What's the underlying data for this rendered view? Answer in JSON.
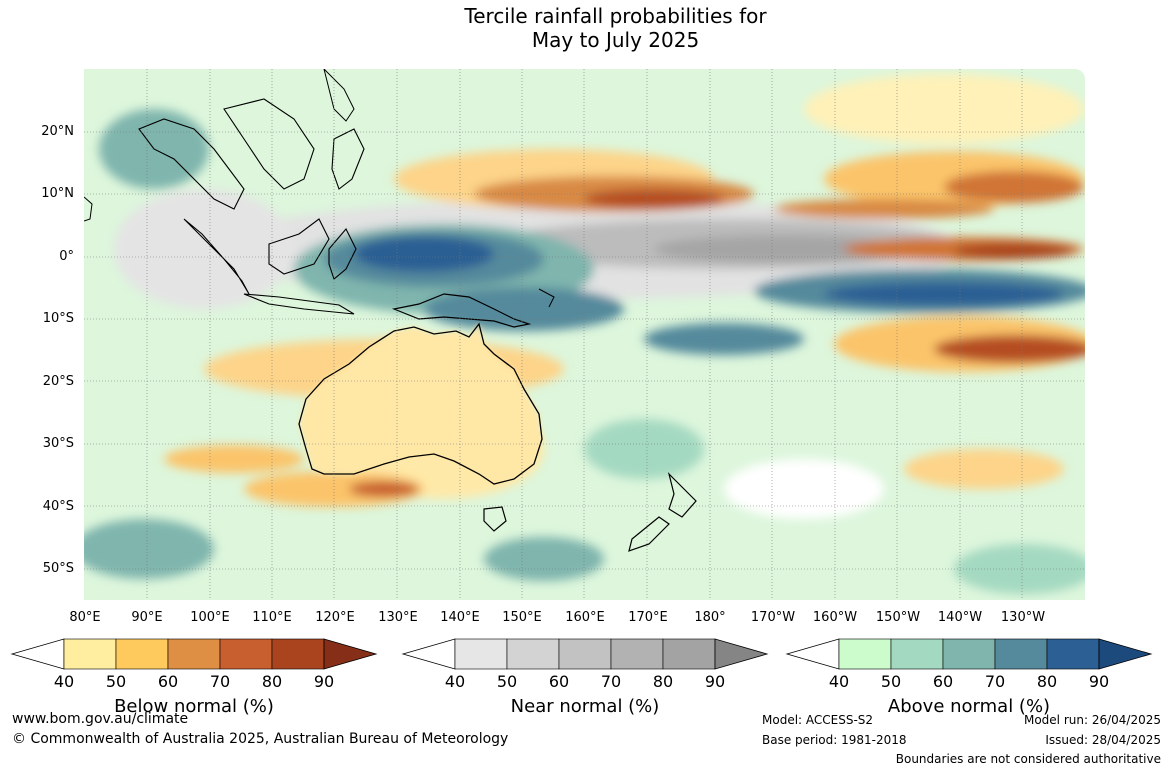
{
  "title_line1": "Tercile rainfall probabilities for",
  "title_line2": "May to July 2025",
  "lat_labels": [
    "20°N",
    "10°N",
    "0°",
    "10°S",
    "20°S",
    "30°S",
    "40°S",
    "50°S"
  ],
  "lon_labels": [
    "80°E",
    "90°E",
    "100°E",
    "110°E",
    "120°E",
    "130°E",
    "140°E",
    "150°E",
    "160°E",
    "170°E",
    "180°",
    "170°W",
    "160°W",
    "150°W",
    "140°W",
    "130°W"
  ],
  "colorbars": [
    {
      "label": "Below normal (%)",
      "ticks": [
        "40",
        "50",
        "60",
        "70",
        "80",
        "90"
      ],
      "colors": [
        "#ffffff",
        "#ffeda0",
        "#fec95d",
        "#de8f43",
        "#c75f2e",
        "#a9441e",
        "#862e17"
      ]
    },
    {
      "label": "Near normal (%)",
      "ticks": [
        "40",
        "50",
        "60",
        "70",
        "80",
        "90"
      ],
      "colors": [
        "#ffffff",
        "#e6e6e6",
        "#d3d3d3",
        "#c2c2c2",
        "#b2b2b2",
        "#a3a3a3",
        "#858585"
      ]
    },
    {
      "label": "Above normal (%)",
      "ticks": [
        "40",
        "50",
        "60",
        "70",
        "80",
        "90"
      ],
      "colors": [
        "#ffffff",
        "#ccfccb",
        "#a4d9c1",
        "#7fb5ad",
        "#558a9c",
        "#2c5f94",
        "#1d4a7c"
      ]
    }
  ],
  "footer": {
    "url": "www.bom.gov.au/climate",
    "copyright": "© Commonwealth of Australia 2025, Australian Bureau of Meteorology",
    "model": "Model: ACCESS-S2",
    "base_period": "Base period: 1981-2018",
    "model_run": "Model run: 26/04/2025",
    "issued": "Issued: 28/04/2025",
    "disclaimer": "Boundaries are not considered authoritative"
  }
}
